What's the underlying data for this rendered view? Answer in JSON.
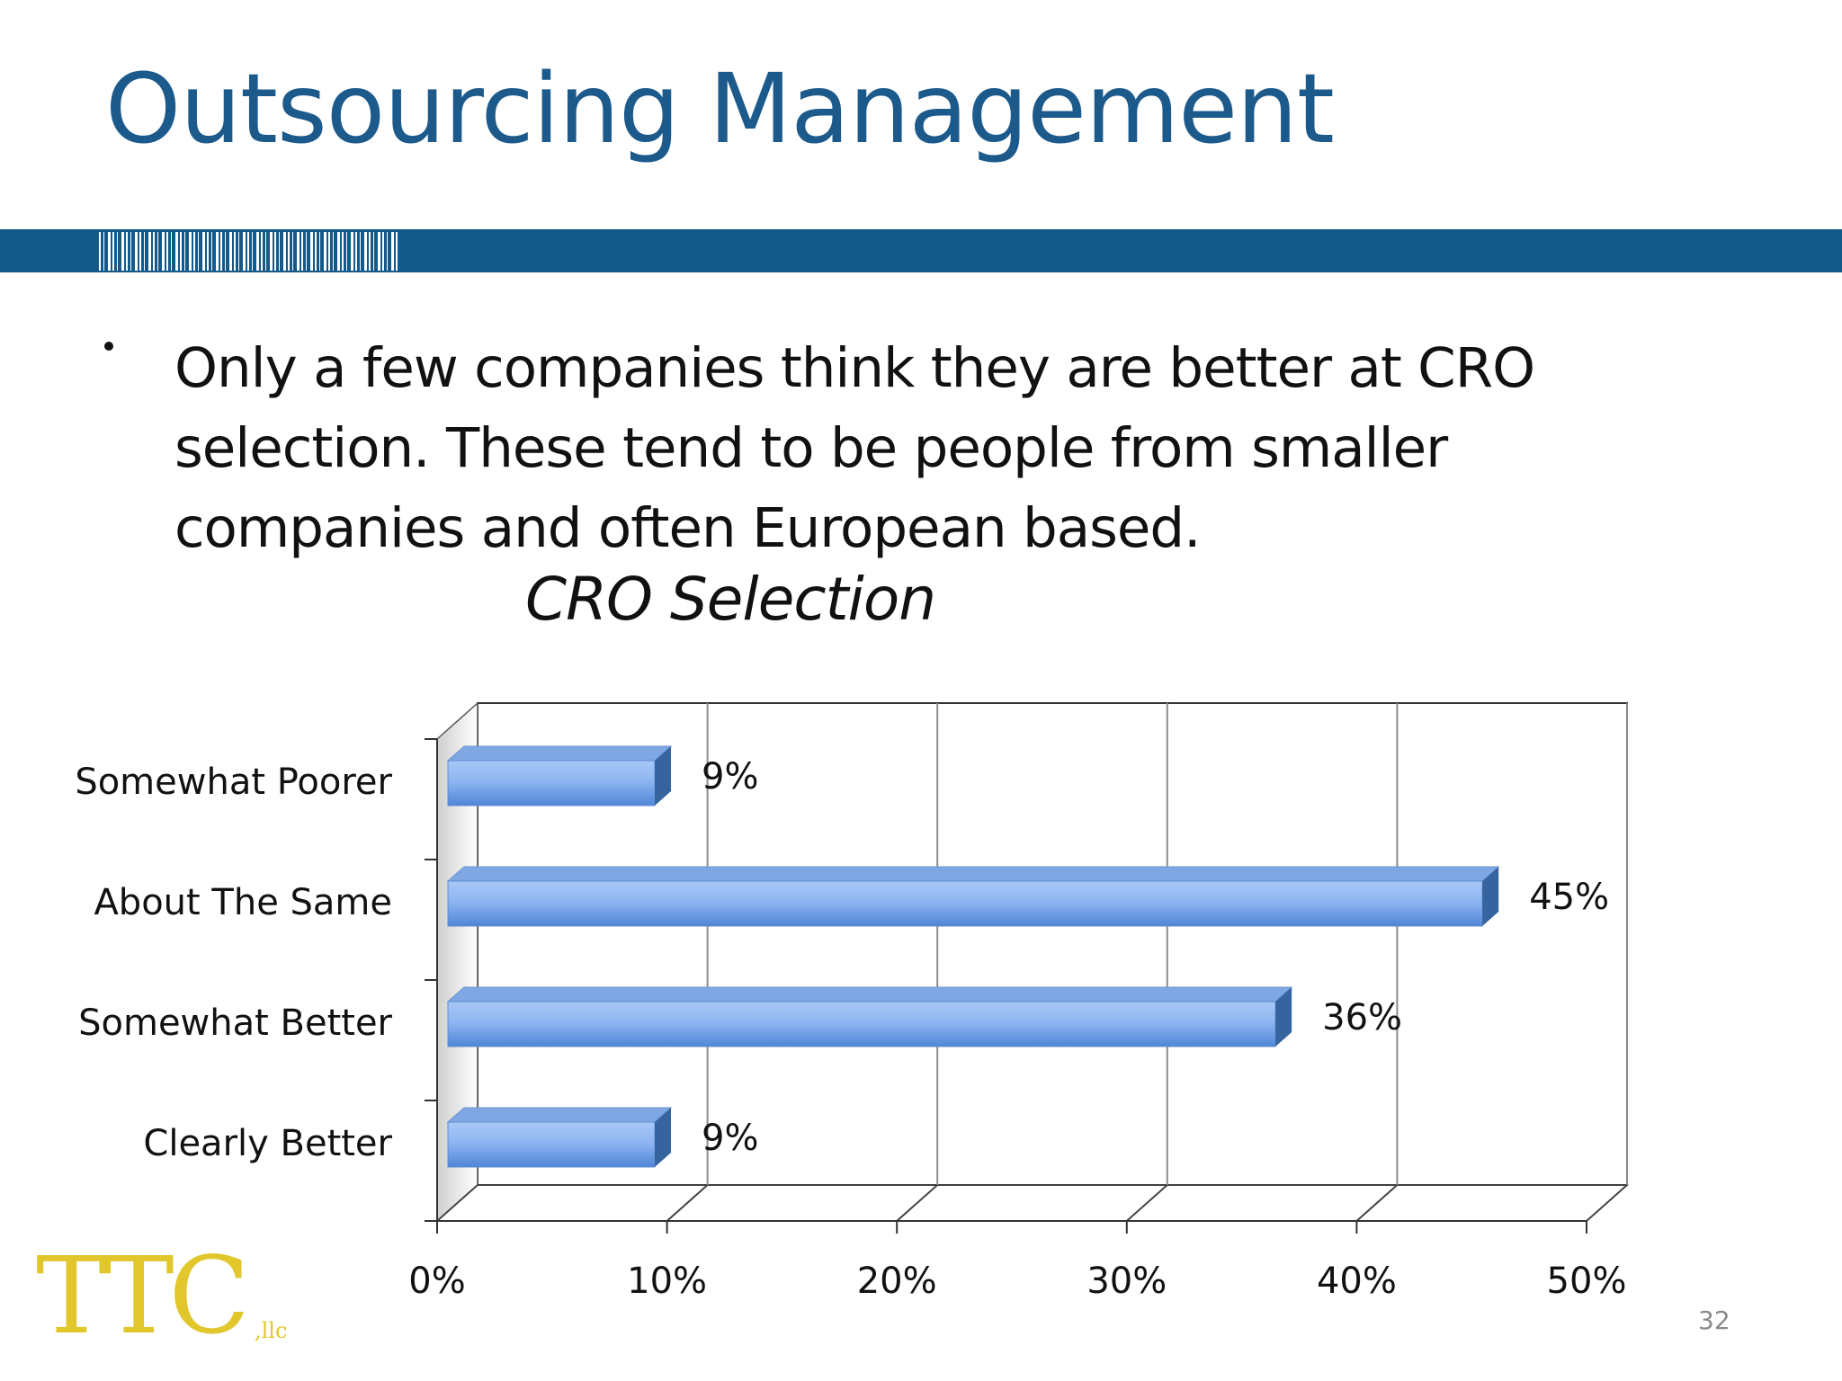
{
  "slide": {
    "title": "Outsourcing Management",
    "bullet": [
      "Only a few companies think they are better at CRO",
      "selection.  These tend to be people from smaller",
      "companies and often European based."
    ],
    "chart_heading": "CRO Selection",
    "logo_text": "TTC",
    "logo_suffix": ",llc",
    "page_number": "32"
  },
  "colors": {
    "title": "#1d5a8c",
    "band": "#135a8b",
    "bar_light": "#a7c8f7",
    "bar_dark": "#4f86d6",
    "bar_end": "#35649e",
    "logo": "#e1c72c"
  },
  "chart_data": {
    "type": "bar",
    "orientation": "horizontal",
    "style": "3d",
    "title": "CRO Selection",
    "categories": [
      "Somewhat Poorer",
      "About The Same",
      "Somewhat Better",
      "Clearly Better"
    ],
    "values": [
      9,
      45,
      36,
      9
    ],
    "data_labels": [
      "9%",
      "45%",
      "36%",
      "9%"
    ],
    "xlim": [
      0,
      50
    ],
    "x_ticks": [
      0,
      10,
      20,
      30,
      40,
      50
    ],
    "x_tick_labels": [
      "0%",
      "10%",
      "20%",
      "30%",
      "40%",
      "50%"
    ],
    "grid": "vertical",
    "legend": "none"
  }
}
